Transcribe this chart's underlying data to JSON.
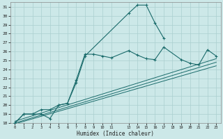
{
  "xlabel": "Humidex (Indice chaleur)",
  "background_color": "#cce8e8",
  "grid_color": "#aacfcf",
  "line_color": "#1a6b6b",
  "xlim": [
    -0.5,
    23.5
  ],
  "ylim": [
    18,
    31.5
  ],
  "yticks": [
    18,
    19,
    20,
    21,
    22,
    23,
    24,
    25,
    26,
    27,
    28,
    29,
    30,
    31
  ],
  "series": [
    {
      "x": [
        0,
        1,
        2,
        3,
        4,
        5,
        6,
        7,
        8,
        13,
        14,
        15,
        16,
        17
      ],
      "y": [
        18,
        19,
        19,
        19,
        18.5,
        20,
        20.2,
        22.5,
        25.5,
        30.3,
        31.2,
        31.2,
        29.2,
        27.5
      ],
      "marker": true
    },
    {
      "x": [
        0,
        1,
        2,
        3,
        4,
        5,
        6,
        7,
        8,
        9,
        10,
        11,
        13,
        14,
        15,
        16,
        17,
        19,
        20,
        21,
        22,
        23
      ],
      "y": [
        18,
        19,
        19,
        19.5,
        19.5,
        20,
        20.2,
        22.8,
        25.7,
        25.7,
        25.5,
        25.3,
        26.1,
        25.6,
        25.2,
        25.1,
        26.5,
        25.1,
        24.7,
        24.5,
        26.2,
        25.5
      ],
      "marker": true
    },
    {
      "x": [
        0,
        23
      ],
      "y": [
        18.2,
        25.2
      ],
      "marker": false
    },
    {
      "x": [
        0,
        23
      ],
      "y": [
        18.0,
        24.8
      ],
      "marker": false
    },
    {
      "x": [
        0,
        23
      ],
      "y": [
        17.9,
        24.4
      ],
      "marker": false
    }
  ],
  "xtick_positions": [
    0,
    1,
    2,
    3,
    4,
    5,
    6,
    7,
    8,
    9,
    10,
    11,
    13,
    14,
    15,
    16,
    17,
    18,
    19,
    20,
    21,
    22,
    23
  ],
  "xtick_labels": [
    "0",
    "1",
    "2",
    "3",
    "4",
    "5",
    "6",
    "7",
    "8",
    "9",
    "10",
    "11",
    "13",
    "14",
    "15",
    "16",
    "17",
    "18",
    "19",
    "20",
    "21",
    "22",
    "23"
  ]
}
